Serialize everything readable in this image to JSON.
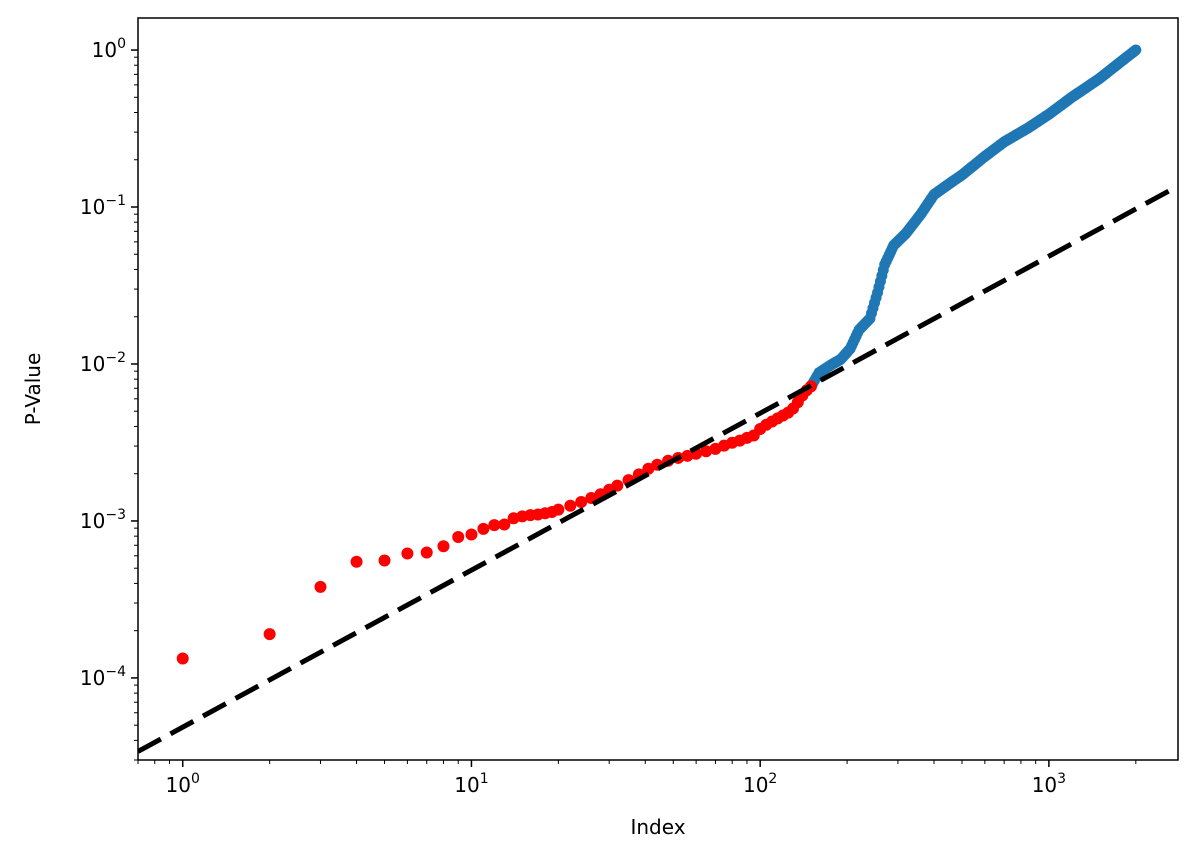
{
  "chart_data": {
    "type": "scatter",
    "title": "",
    "xlabel": "Index",
    "ylabel": "P-Value",
    "xscale": "log",
    "yscale": "log",
    "xlim": [
      0.7,
      2800
    ],
    "ylim": [
      3e-05,
      1.6
    ],
    "grid": false,
    "legend": "none",
    "x_ticks": [
      {
        "value": 1,
        "base": "10",
        "exp": "0"
      },
      {
        "value": 10,
        "base": "10",
        "exp": "1"
      },
      {
        "value": 100,
        "base": "10",
        "exp": "2"
      },
      {
        "value": 1000,
        "base": "10",
        "exp": "3"
      }
    ],
    "y_ticks": [
      {
        "value": 0.0001,
        "base": "10",
        "exp": "−4"
      },
      {
        "value": 0.001,
        "base": "10",
        "exp": "−3"
      },
      {
        "value": 0.01,
        "base": "10",
        "exp": "−2"
      },
      {
        "value": 0.1,
        "base": "10",
        "exp": "−1"
      },
      {
        "value": 1,
        "base": "10",
        "exp": "0"
      }
    ],
    "series": [
      {
        "color": "#ff0000",
        "marker": "circle",
        "points": [
          [
            1,
            0.000133
          ],
          [
            2,
            0.00019
          ],
          [
            3,
            0.00038
          ],
          [
            4,
            0.00055
          ],
          [
            5,
            0.00056
          ],
          [
            6,
            0.00062
          ],
          [
            7,
            0.00063
          ],
          [
            8,
            0.00069
          ],
          [
            9,
            0.00079
          ],
          [
            10,
            0.00082
          ],
          [
            11,
            0.00089
          ],
          [
            12,
            0.00094
          ],
          [
            13,
            0.00095
          ],
          [
            14,
            0.00104
          ],
          [
            15,
            0.00107
          ],
          [
            16,
            0.00109
          ],
          [
            17,
            0.0011
          ],
          [
            18,
            0.00112
          ],
          [
            19,
            0.00114
          ],
          [
            20,
            0.00118
          ],
          [
            22,
            0.00125
          ],
          [
            24,
            0.00132
          ],
          [
            26,
            0.0014
          ],
          [
            28,
            0.00148
          ],
          [
            30,
            0.00158
          ],
          [
            32,
            0.00168
          ],
          [
            35,
            0.00182
          ],
          [
            38,
            0.00198
          ],
          [
            41,
            0.00215
          ],
          [
            44,
            0.00228
          ],
          [
            48,
            0.00242
          ],
          [
            52,
            0.00252
          ],
          [
            56,
            0.0026
          ],
          [
            60,
            0.00268
          ],
          [
            65,
            0.00278
          ],
          [
            70,
            0.00288
          ],
          [
            75,
            0.00302
          ],
          [
            80,
            0.00315
          ],
          [
            85,
            0.00325
          ],
          [
            90,
            0.00338
          ],
          [
            95,
            0.0035
          ],
          [
            100,
            0.00385
          ],
          [
            105,
            0.0041
          ],
          [
            110,
            0.0043
          ],
          [
            115,
            0.0045
          ],
          [
            120,
            0.0047
          ],
          [
            125,
            0.0049
          ],
          [
            130,
            0.0052
          ],
          [
            135,
            0.0057
          ],
          [
            140,
            0.0063
          ],
          [
            145,
            0.0068
          ],
          [
            150,
            0.0072
          ]
        ]
      },
      {
        "color": "#1f77b4",
        "marker": "circle",
        "anchors": [
          [
            152,
            0.0075
          ],
          [
            160,
            0.0088
          ],
          [
            175,
            0.0098
          ],
          [
            190,
            0.0107
          ],
          [
            205,
            0.0125
          ],
          [
            220,
            0.0165
          ],
          [
            240,
            0.0195
          ],
          [
            255,
            0.0285
          ],
          [
            270,
            0.043
          ],
          [
            290,
            0.057
          ],
          [
            320,
            0.068
          ],
          [
            360,
            0.09
          ],
          [
            400,
            0.12
          ],
          [
            450,
            0.14
          ],
          [
            500,
            0.16
          ],
          [
            600,
            0.21
          ],
          [
            700,
            0.26
          ],
          [
            850,
            0.32
          ],
          [
            1000,
            0.39
          ],
          [
            1200,
            0.5
          ],
          [
            1500,
            0.66
          ],
          [
            1800,
            0.86
          ],
          [
            2000,
            1.0
          ]
        ]
      }
    ],
    "reference_line": {
      "style": "dashed",
      "color": "#000000",
      "from": [
        0.7,
        3.4e-05
      ],
      "to": [
        2800,
        0.136
      ]
    }
  }
}
